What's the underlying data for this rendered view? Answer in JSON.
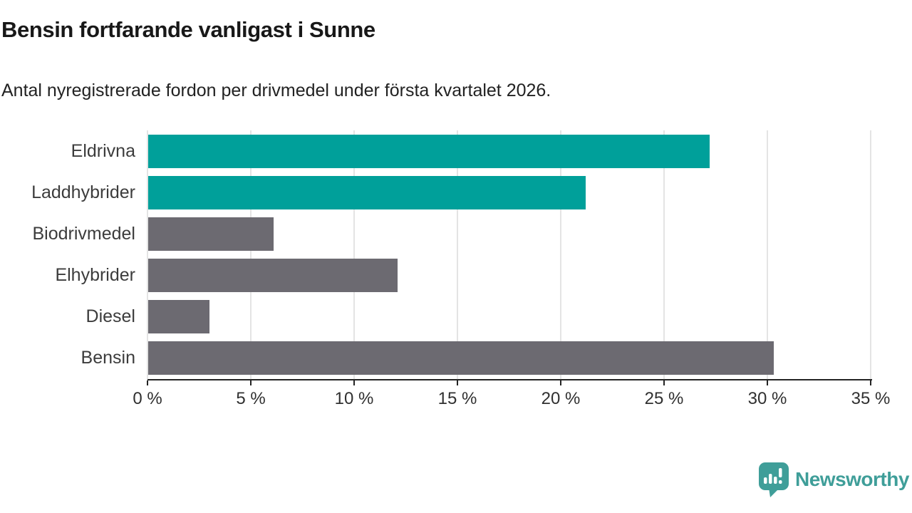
{
  "header": {
    "title": "Bensin fortfarande vanligast i Sunne",
    "subtitle": "Antal nyregistrerade fordon per drivmedel under första kvartalet 2026."
  },
  "chart_data": {
    "type": "bar",
    "orientation": "horizontal",
    "title": "Bensin fortfarande vanligast i Sunne",
    "subtitle": "Antal nyregistrerade fordon per drivmedel under första kvartalet 2026.",
    "categories": [
      "Eldrivna",
      "Laddhybrider",
      "Biodrivmedel",
      "Elhybrider",
      "Diesel",
      "Bensin"
    ],
    "values": [
      27.2,
      21.2,
      6.1,
      12.1,
      3,
      30.3
    ],
    "unit": "%",
    "bar_color_keys": [
      "teal",
      "teal",
      "gray",
      "gray",
      "gray",
      "gray"
    ],
    "colors": {
      "teal": "#00A09A",
      "gray": "#6C6A71",
      "grid": "#E4E4E4",
      "axis": "#242424",
      "tick_label": "#303030",
      "category_label": "#3C3C3C"
    },
    "xlabel": "",
    "ylabel": "",
    "xlim": [
      0,
      35
    ],
    "x_tick_values": [
      0,
      5,
      10,
      15,
      20,
      25,
      30,
      35
    ],
    "x_tick_labels": [
      "0 %",
      "5 %",
      "10 %",
      "15 %",
      "20 %",
      "25 %",
      "30 %",
      "35 %"
    ],
    "grid": "vertical",
    "legend": "none"
  },
  "footer": {
    "brand": "Newsworthy",
    "brand_color": "#3F9E99",
    "logo_icon": "newsworthy-speech-bubble-bar-chart-icon"
  }
}
